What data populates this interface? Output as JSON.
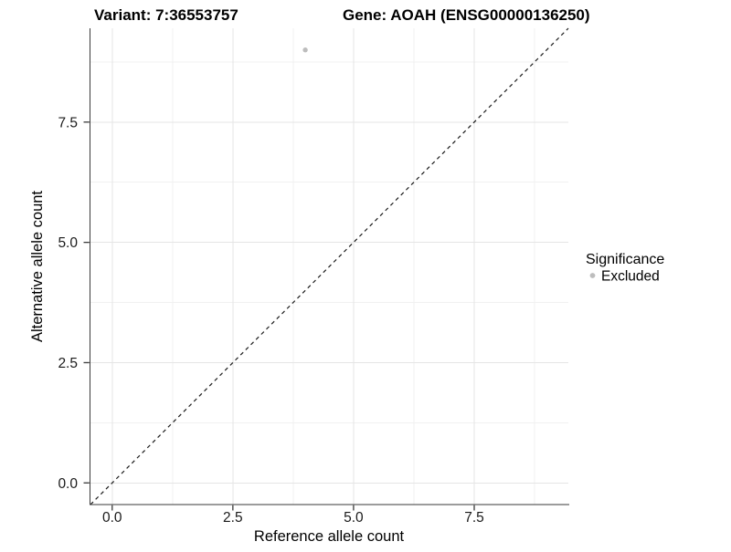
{
  "chart_data": {
    "type": "scatter",
    "titles": {
      "variant": "Variant: 7:36553757",
      "gene": "Gene: AOAH (ENSG00000136250)"
    },
    "xlabel": "Reference allele count",
    "ylabel": "Alternative allele count",
    "xlim": [
      -0.45,
      9.45
    ],
    "ylim": [
      -0.45,
      9.45
    ],
    "xticks": {
      "values": [
        0,
        2.5,
        5,
        7.5
      ],
      "labels": [
        "0.0",
        "2.5",
        "5.0",
        "7.5"
      ]
    },
    "yticks": {
      "values": [
        0,
        2.5,
        5,
        7.5
      ],
      "labels": [
        "0.0",
        "2.5",
        "5.0",
        "7.5"
      ]
    },
    "minor_ticks_x": [
      1.25,
      3.75,
      6.25,
      8.75
    ],
    "minor_ticks_y": [
      1.25,
      3.75,
      6.25,
      8.75
    ],
    "grid": true,
    "identity_line": {
      "slope": 1,
      "intercept": 0,
      "style": "dashed"
    },
    "series": [
      {
        "name": "Excluded",
        "color": "#bdbdbd",
        "points": [
          {
            "x": 4,
            "y": 9
          }
        ]
      }
    ],
    "legend": {
      "title": "Significance",
      "position": "right",
      "items": [
        {
          "label": "Excluded",
          "color": "#bdbdbd",
          "shape": "circle"
        }
      ]
    }
  },
  "colors": {
    "background": "#ffffff",
    "grid_major": "#e5e5e5",
    "grid_minor": "#f1f1f1",
    "axis_line": "#3a3a3a",
    "dashed_line": "#1a1a1a",
    "point": "#bdbdbd",
    "text": "#000000"
  }
}
